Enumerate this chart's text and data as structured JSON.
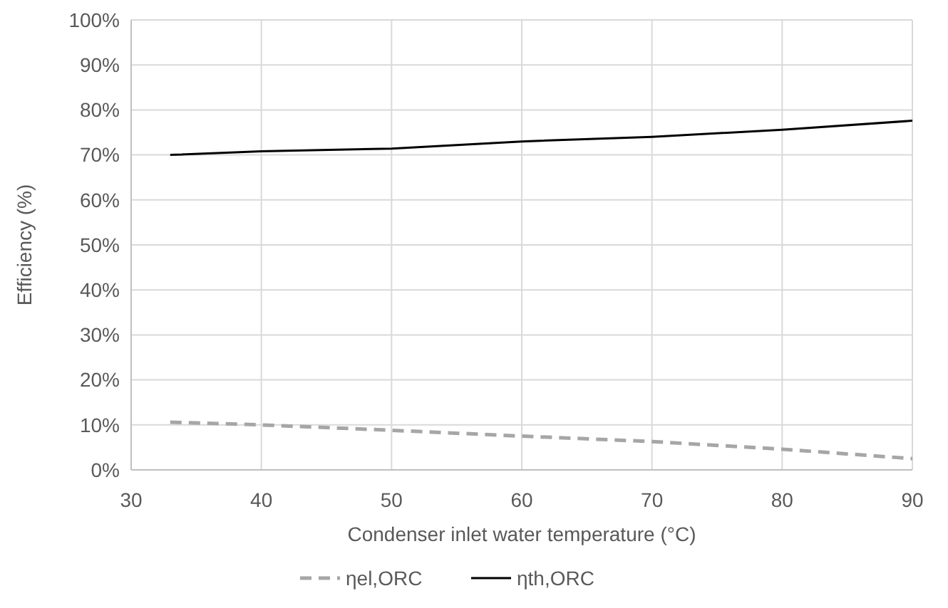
{
  "chart_data": {
    "type": "line",
    "xlabel": "Condenser inlet water temperature (°C)",
    "ylabel": "Efficiency (%)",
    "x": [
      33,
      40,
      50,
      60,
      70,
      80,
      90
    ],
    "series": [
      {
        "name": "ηel,ORC",
        "color": "#a6a6a6",
        "line_style": "dashed",
        "values": [
          10.6,
          10.0,
          8.8,
          7.5,
          6.3,
          4.6,
          2.5
        ]
      },
      {
        "name": "ηth,ORC",
        "color": "#000000",
        "line_style": "solid",
        "values": [
          70,
          70.8,
          71.4,
          73,
          74,
          75.6,
          77.6
        ]
      }
    ],
    "xlim": [
      30,
      90
    ],
    "xticks": [
      30,
      40,
      50,
      60,
      70,
      80,
      90
    ],
    "ylim": [
      0,
      100
    ],
    "yticks": [
      {
        "value": 0,
        "label": "0%"
      },
      {
        "value": 10,
        "label": "10%"
      },
      {
        "value": 20,
        "label": "20%"
      },
      {
        "value": 30,
        "label": "30%"
      },
      {
        "value": 40,
        "label": "40%"
      },
      {
        "value": 50,
        "label": "50%"
      },
      {
        "value": 60,
        "label": "60%"
      },
      {
        "value": 70,
        "label": "70%"
      },
      {
        "value": 80,
        "label": "80%"
      },
      {
        "value": 90,
        "label": "90%"
      },
      {
        "value": 100,
        "label": "100%"
      }
    ],
    "grid": true,
    "legend": "bottom",
    "marker": "none"
  }
}
